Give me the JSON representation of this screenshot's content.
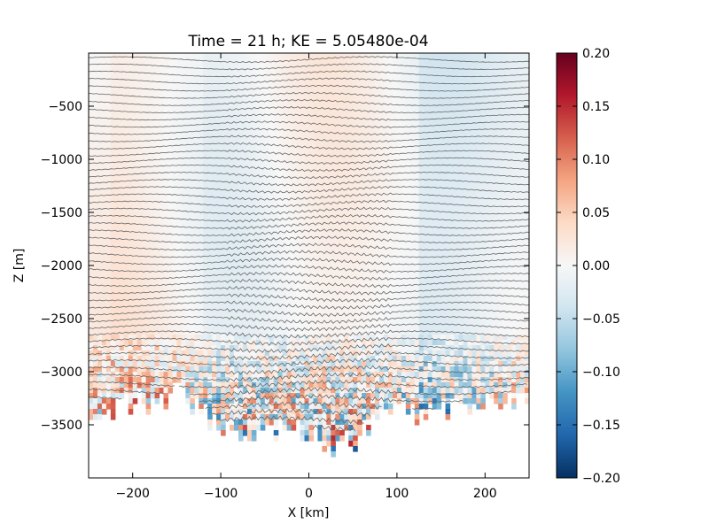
{
  "chart_data": {
    "type": "heatmap",
    "title": "Time = 21 h; KE = 5.05480e-04",
    "xlabel": "X [km]",
    "ylabel": "Z [m]",
    "xlim": [
      -250,
      250
    ],
    "ylim": [
      -4000,
      0
    ],
    "x_ticks": [
      -200,
      -100,
      0,
      100,
      200
    ],
    "x_tick_labels": [
      "−200",
      "−100",
      "0",
      "100",
      "200"
    ],
    "y_ticks": [
      -500,
      -1000,
      -1500,
      -2000,
      -2500,
      -3000,
      -3500
    ],
    "y_tick_labels": [
      "−500",
      "−1000",
      "−1500",
      "−2000",
      "−2500",
      "−3000",
      "−3500"
    ],
    "colorbar": {
      "vmin": -0.2,
      "vmax": 0.2,
      "colormap": "RdBu_r",
      "ticks": [
        0.2,
        0.15,
        0.1,
        0.05,
        0.0,
        -0.05,
        -0.1,
        -0.15,
        -0.2
      ],
      "tick_labels": [
        "0.20",
        "0.15",
        "0.10",
        "0.05",
        "0.00",
        "−0.05",
        "−0.10",
        "−0.15",
        "−0.20"
      ]
    },
    "bottom_depth_profile": {
      "x_km": [
        -250,
        -225,
        -200,
        -175,
        -150,
        -125,
        -100,
        -75,
        -50,
        -25,
        0,
        25,
        50,
        75,
        100,
        125,
        150,
        175,
        200,
        225,
        250
      ],
      "depth_m": [
        -3300,
        -3350,
        -3250,
        -3300,
        -3150,
        -3300,
        -3550,
        -3500,
        -3550,
        -3500,
        -3550,
        -3650,
        -3600,
        -3400,
        -3300,
        -3400,
        -3350,
        -3300,
        -3250,
        -3250,
        -3150
      ]
    },
    "isopycnal_count": 52,
    "contour_color": "#666666",
    "grid": false
  }
}
